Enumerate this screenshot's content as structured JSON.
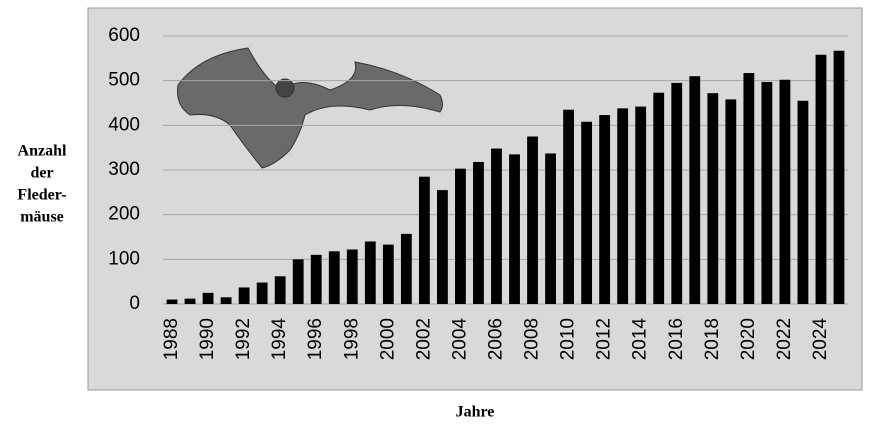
{
  "chart_data": {
    "type": "bar",
    "ylabel": [
      "Anzahl",
      "der",
      "Fleder-",
      "mäuse"
    ],
    "xlabel": "Jahre",
    "categories": [
      "1988",
      null,
      "1990",
      null,
      "1992",
      null,
      "1994",
      null,
      "1996",
      null,
      "1998",
      null,
      "2000",
      null,
      "2002",
      null,
      "2004",
      null,
      "2006",
      null,
      "2008",
      null,
      "2010",
      null,
      "2012",
      null,
      "2014",
      null,
      "2016",
      null,
      "2018",
      null,
      "2020",
      null,
      "2022",
      null,
      "2024",
      null
    ],
    "values": [
      10,
      12,
      25,
      15,
      37,
      48,
      62,
      100,
      110,
      118,
      122,
      140,
      133,
      157,
      285,
      255,
      303,
      318,
      348,
      335,
      375,
      337,
      435,
      408,
      423,
      438,
      442,
      473,
      495,
      510,
      472,
      458,
      517,
      497,
      502,
      455,
      558,
      567
    ],
    "color": "#000000",
    "ylim": [
      0,
      600
    ],
    "yticks": [
      0,
      100,
      200,
      300,
      400,
      500,
      600
    ],
    "grid": true
  }
}
